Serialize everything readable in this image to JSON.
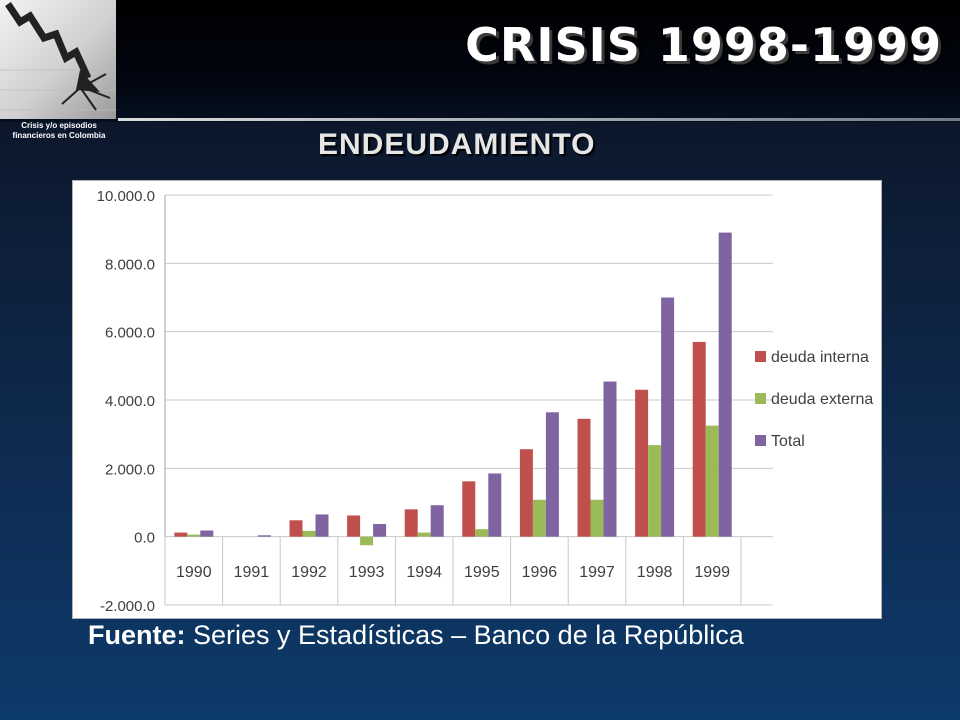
{
  "header": {
    "title": "CRISIS 1998-1999",
    "logo_caption_line1": "Crisis y/o episodios",
    "logo_caption_line2": "financieros en Colombia"
  },
  "subtitle": "ENDEUDAMIENTO",
  "source": {
    "label": "Fuente:",
    "text": "Series y Estadísticas – Banco de la República"
  },
  "colors": {
    "series_interna": "#c0504d",
    "series_externa": "#9bbb59",
    "series_total": "#8064a2",
    "axis_text": "#404040"
  },
  "chart_data": {
    "type": "bar",
    "categories": [
      "1990",
      "1991",
      "1992",
      "1993",
      "1994",
      "1995",
      "1996",
      "1997",
      "1998",
      "1999"
    ],
    "series": [
      {
        "name": "deuda interna",
        "values": [
          120,
          0,
          480,
          620,
          800,
          1620,
          2560,
          3450,
          4300,
          5700
        ]
      },
      {
        "name": "deuda externa",
        "values": [
          60,
          0,
          170,
          -250,
          120,
          220,
          1080,
          1080,
          2680,
          3250
        ]
      },
      {
        "name": "Total",
        "values": [
          180,
          40,
          650,
          370,
          920,
          1850,
          3640,
          4540,
          7000,
          8900
        ]
      }
    ],
    "ylim": [
      -2000,
      10000
    ],
    "yticks": [
      -2000,
      0,
      2000,
      4000,
      6000,
      8000,
      10000
    ],
    "ytick_labels": [
      "-2.000.0",
      "0.0",
      "2.000.0",
      "4.000.0",
      "6.000.0",
      "8.000.0",
      "10.000.0"
    ],
    "grid": true,
    "legend_position": "right"
  }
}
